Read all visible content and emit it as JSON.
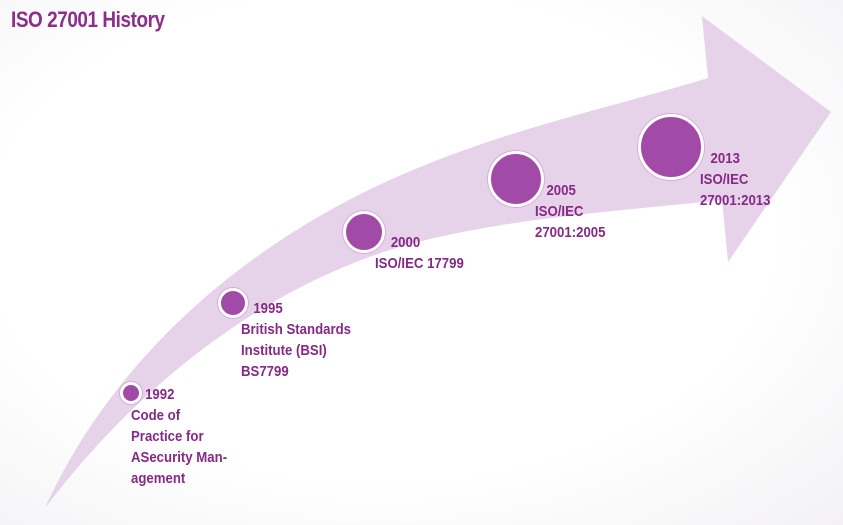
{
  "title": "ISO 27001 History",
  "colors": {
    "title": "#8b2f8b",
    "text": "#852a85",
    "node": "#a24aa8",
    "arrow": "#e6d3ea"
  },
  "milestones": [
    {
      "year": "1992",
      "lines": [
        "Code of",
        "Practice for",
        "ASecurity Man-",
        "agement"
      ]
    },
    {
      "year": "1995",
      "lines": [
        "British Standards",
        "Institute (BSI)",
        "BS7799"
      ]
    },
    {
      "year": "2000",
      "lines": [
        "ISO/IEC 17799"
      ]
    },
    {
      "year": "2005",
      "lines": [
        "ISO/IEC",
        "27001:2005"
      ]
    },
    {
      "year": "2013",
      "lines": [
        "ISO/IEC",
        "27001:2013"
      ]
    }
  ]
}
